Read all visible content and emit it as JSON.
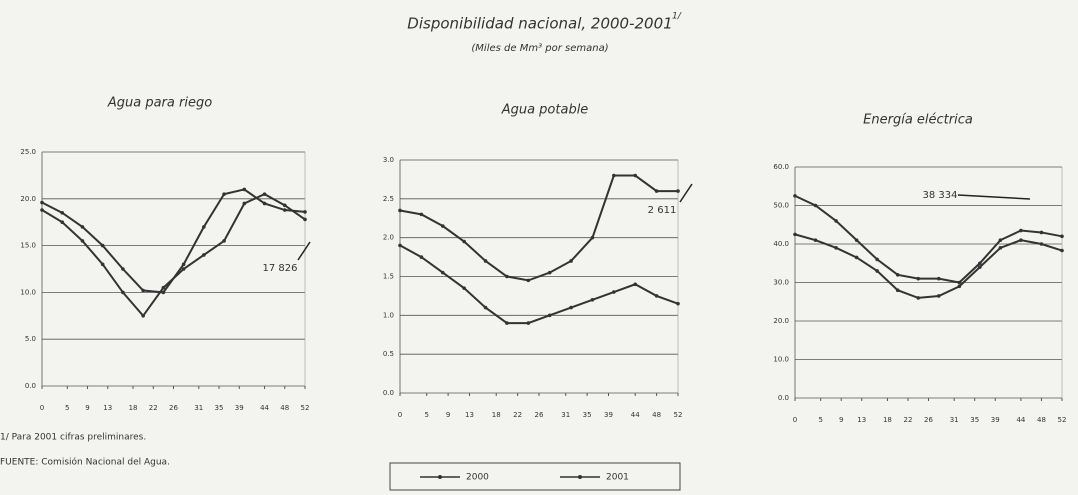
{
  "title": "Disponibilidad nacional, 2000-2001",
  "title_note": "1/",
  "subtitle": "(Miles de Mm³ por semana)",
  "footnotes": [
    "1/ Para 2001 cifras preliminares.",
    "FUENTE: Comisión Nacional del Agua."
  ],
  "chart_data": [
    {
      "type": "line",
      "title": "Agua para riego",
      "annotation": "17 826",
      "x": [
        0,
        4,
        8,
        12,
        16,
        20,
        24,
        28,
        32,
        36,
        40,
        44,
        48,
        52
      ],
      "xlim": [
        0,
        52
      ],
      "xticks": [
        0,
        5,
        9,
        13,
        18,
        22,
        26,
        31,
        35,
        39,
        44,
        48,
        52
      ],
      "ylim": [
        0,
        25
      ],
      "yticks": [
        {
          "value": 0,
          "label": "0.0"
        },
        {
          "value": 5,
          "label": "5.0"
        },
        {
          "value": 10,
          "label": "10.0"
        },
        {
          "value": 15,
          "label": "15.0"
        },
        {
          "value": 20,
          "label": "20.0"
        },
        {
          "value": 25,
          "label": "25.0"
        }
      ],
      "grid": true,
      "series": [
        {
          "name": "2000",
          "color": "#333333",
          "values": [
            19.6,
            18.5,
            17,
            15,
            12.5,
            10.2,
            10,
            13,
            17,
            20.5,
            21,
            19.5,
            18.8,
            18.6
          ]
        },
        {
          "name": "2001",
          "color": "#333333",
          "values": [
            18.8,
            17.5,
            15.5,
            13,
            10,
            7.5,
            10.5,
            12.5,
            14,
            15.5,
            19.5,
            20.5,
            19.3,
            17.8
          ]
        }
      ]
    },
    {
      "type": "line",
      "title": "Agua potable",
      "annotation": "2 611",
      "x": [
        0,
        4,
        8,
        12,
        16,
        20,
        24,
        28,
        32,
        36,
        40,
        44,
        48,
        52
      ],
      "xlim": [
        0,
        52
      ],
      "xticks": [
        0,
        5,
        9,
        13,
        18,
        22,
        26,
        31,
        35,
        39,
        44,
        48,
        52
      ],
      "ylim": [
        0,
        3
      ],
      "yticks": [
        {
          "value": 0,
          "label": "0.0"
        },
        {
          "value": 0.5,
          "label": "0.5"
        },
        {
          "value": 1,
          "label": "1.0"
        },
        {
          "value": 1.5,
          "label": "1.5"
        },
        {
          "value": 2,
          "label": "2.0"
        },
        {
          "value": 2.5,
          "label": "2.5"
        },
        {
          "value": 3,
          "label": "3.0"
        }
      ],
      "grid": true,
      "series": [
        {
          "name": "2000",
          "color": "#333333",
          "values": [
            1.9,
            1.75,
            1.55,
            1.35,
            1.1,
            0.9,
            0.9,
            1.0,
            1.1,
            1.2,
            1.3,
            1.4,
            1.25,
            1.15
          ]
        },
        {
          "name": "2001",
          "color": "#333333",
          "values": [
            2.35,
            2.3,
            2.15,
            1.95,
            1.7,
            1.5,
            1.45,
            1.55,
            1.7,
            2.0,
            2.8,
            2.8,
            2.6,
            2.6
          ]
        }
      ]
    },
    {
      "type": "line",
      "title": "Energía eléctrica",
      "annotation": "38 334",
      "x": [
        0,
        4,
        8,
        12,
        16,
        20,
        24,
        28,
        32,
        36,
        40,
        44,
        48,
        52
      ],
      "xlim": [
        0,
        52
      ],
      "xticks": [
        0,
        5,
        9,
        13,
        18,
        22,
        26,
        31,
        35,
        39,
        44,
        48,
        52
      ],
      "ylim": [
        0,
        60
      ],
      "yticks": [
        {
          "value": 0,
          "label": "0.0"
        },
        {
          "value": 10,
          "label": "10.0"
        },
        {
          "value": 20,
          "label": "20.0"
        },
        {
          "value": 30,
          "label": "30.0"
        },
        {
          "value": 40,
          "label": "40.0"
        },
        {
          "value": 50,
          "label": "50.0"
        },
        {
          "value": 60,
          "label": "60.0"
        }
      ],
      "grid": true,
      "series": [
        {
          "name": "2000",
          "color": "#333333",
          "values": [
            52.5,
            50,
            46,
            41,
            36,
            32,
            31,
            31,
            30,
            35,
            41,
            43.5,
            43,
            42
          ]
        },
        {
          "name": "2001",
          "color": "#333333",
          "values": [
            42.5,
            41,
            39,
            36.5,
            33,
            28,
            26,
            26.5,
            29,
            34,
            39,
            41,
            40,
            38.3
          ]
        }
      ]
    }
  ]
}
